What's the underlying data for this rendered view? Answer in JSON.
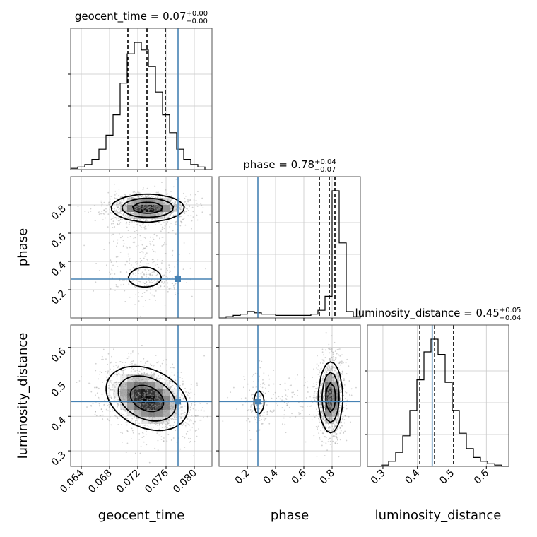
{
  "chart_data": {
    "type": "corner",
    "parameters": [
      {
        "name": "geocent_time",
        "axis_label": "geocent_time",
        "title_prefix": "geocent_time = 0.07",
        "title_sup": "+0.00",
        "title_sub": "−0.00",
        "range": [
          0.0625,
          0.0825
        ],
        "ticks": [
          0.064,
          0.068,
          0.072,
          0.076,
          0.08
        ],
        "tick_labels": [
          "0.064",
          "0.068",
          "0.072",
          "0.076",
          "0.080"
        ],
        "quantiles": [
          0.0706,
          0.0733,
          0.0759
        ],
        "injection": 0.0777,
        "hist_edges": [
          0.0625,
          0.0635,
          0.0645,
          0.0655,
          0.0665,
          0.0675,
          0.0685,
          0.0695,
          0.0705,
          0.0715,
          0.0725,
          0.0735,
          0.0745,
          0.0755,
          0.0765,
          0.0775,
          0.0785,
          0.0795,
          0.0805,
          0.0815,
          0.0825
        ],
        "hist_counts": [
          1,
          2,
          4,
          8,
          16,
          27,
          43,
          68,
          91,
          100,
          94,
          81,
          61,
          43,
          29,
          16,
          8,
          4,
          2,
          0
        ]
      },
      {
        "name": "phase",
        "axis_label": "phase",
        "title_prefix": "phase = 0.78",
        "title_sup": "+0.04",
        "title_sub": "−0.07",
        "range": [
          0.0,
          1.0
        ],
        "ticks": [
          0.2,
          0.4,
          0.6,
          0.8
        ],
        "tick_labels": [
          "0.2",
          "0.4",
          "0.6",
          "0.8"
        ],
        "quantiles": [
          0.71,
          0.78,
          0.82
        ],
        "injection": 0.275,
        "hist_edges": [
          0.0,
          0.05,
          0.1,
          0.15,
          0.2,
          0.25,
          0.3,
          0.35,
          0.4,
          0.45,
          0.5,
          0.55,
          0.6,
          0.65,
          0.7,
          0.75,
          0.8,
          0.85,
          0.9,
          0.95,
          1.0
        ],
        "hist_counts": [
          0,
          1,
          2,
          3,
          5,
          4,
          3,
          3,
          2,
          2,
          2,
          2,
          2,
          3,
          6,
          17,
          100,
          59,
          5,
          1
        ]
      },
      {
        "name": "luminosity_distance",
        "axis_label": "luminosity_distance",
        "title_prefix": "luminosity_distance = 0.45",
        "title_sup": "+0.05",
        "title_sub": "−0.04",
        "range": [
          0.255,
          0.665
        ],
        "ticks": [
          0.3,
          0.4,
          0.5,
          0.6
        ],
        "tick_labels": [
          "0.3",
          "0.4",
          "0.5",
          "0.6"
        ],
        "quantiles": [
          0.407,
          0.45,
          0.505
        ],
        "injection": 0.443,
        "hist_edges": [
          0.255,
          0.2755,
          0.296,
          0.3165,
          0.337,
          0.3575,
          0.378,
          0.3985,
          0.419,
          0.4395,
          0.46,
          0.4805,
          0.501,
          0.5215,
          0.542,
          0.5625,
          0.583,
          0.6035,
          0.624,
          0.6445,
          0.665
        ],
        "hist_counts": [
          0,
          0,
          1,
          4,
          11,
          24,
          44,
          68,
          90,
          100,
          88,
          66,
          44,
          26,
          14,
          7,
          4,
          2,
          1,
          0
        ],
        "ylim_max": 110
      }
    ],
    "panels": {
      "geocent_time_vs_phase": {
        "x": "geocent_time",
        "y": "phase",
        "modes": [
          {
            "cx": 0.0734,
            "cy": 0.78,
            "sx": 0.0025,
            "sy": 0.045,
            "weight": 0.7
          },
          {
            "cx": 0.073,
            "cy": 0.28,
            "sx": 0.0022,
            "sy": 0.06,
            "weight": 0.15
          },
          {
            "cx": 0.073,
            "cy": 0.5,
            "sx": 0.0025,
            "sy": 0.15,
            "weight": 0.15
          }
        ]
      },
      "geocent_time_vs_luminosity_distance": {
        "x": "geocent_time",
        "y": "luminosity_distance",
        "modes": [
          {
            "cx": 0.0733,
            "cy": 0.452,
            "sx": 0.0028,
            "sy": 0.045,
            "weight": 1.0,
            "corr": -0.3
          }
        ]
      },
      "phase_vs_luminosity_distance": {
        "x": "phase",
        "y": "luminosity_distance",
        "modes": [
          {
            "cx": 0.79,
            "cy": 0.455,
            "sx": 0.04,
            "sy": 0.05,
            "weight": 0.8
          },
          {
            "cx": 0.28,
            "cy": 0.44,
            "sx": 0.04,
            "sy": 0.04,
            "weight": 0.1
          },
          {
            "cx": 0.5,
            "cy": 0.445,
            "sx": 0.15,
            "sy": 0.035,
            "weight": 0.1
          }
        ]
      }
    },
    "colors": {
      "injection": "#4682b4",
      "quantile": "#000000",
      "hist": "#000000",
      "grid": "#c8c8c8",
      "scatter": "#9a9a9a"
    }
  }
}
